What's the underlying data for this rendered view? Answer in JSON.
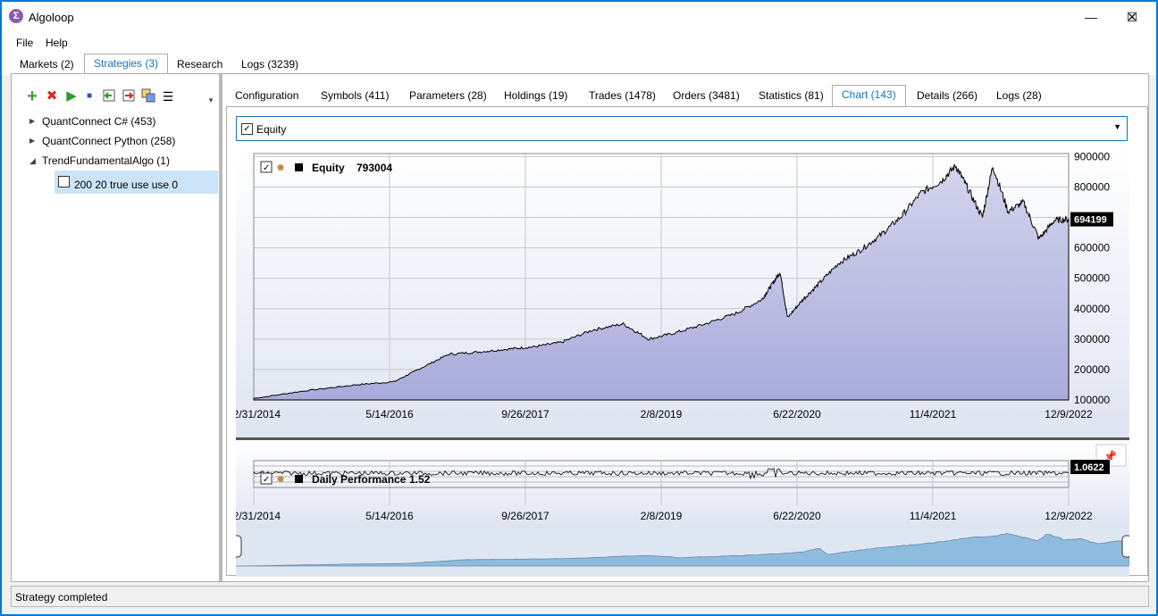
{
  "window": {
    "title": "Algoloop",
    "icon": "sigma-icon"
  },
  "menu": {
    "file": "File",
    "help": "Help"
  },
  "top_tabs": [
    "Markets (2)",
    "Strategies (3)",
    "Research",
    "Logs (3239)"
  ],
  "toolbar_icons": [
    "add-icon",
    "delete-icon",
    "run-icon",
    "stop-icon",
    "import-icon",
    "export-icon",
    "clone-icon",
    "add-list-icon"
  ],
  "tree": {
    "items": [
      "QuantConnect C# (453)",
      "QuantConnect Python (258)",
      "TrendFundamentalAlgo (1)"
    ],
    "leaf": "200 20 true use use 0"
  },
  "sub_tabs": [
    "Configuration",
    "Symbols (411)",
    "Parameters (28)",
    "Holdings (19)",
    "Trades (1478)",
    "Orders (3481)",
    "Statistics (81)",
    "Chart (143)",
    "Details (266)",
    "Logs (28)"
  ],
  "combo": {
    "label": "Equity"
  },
  "colors": {
    "accent": "#1a73b8",
    "equity_fill": "#b6b8e0",
    "navigator": "#8ebcdf"
  },
  "chart_data": [
    {
      "type": "area",
      "legend": "Equity",
      "legend_value": "793004",
      "last_value": "694199",
      "y_ticks": [
        100000,
        200000,
        300000,
        400000,
        500000,
        600000,
        700000,
        800000,
        900000
      ],
      "y_tick_labels": [
        "100000",
        "200000",
        "300000",
        "400000",
        "500000",
        "600000",
        "700000",
        "800000",
        "900000"
      ],
      "ylim": [
        100000,
        910000
      ],
      "x_tick_labels": [
        "12/31/2014",
        "5/14/2016",
        "9/26/2017",
        "2/8/2019",
        "6/22/2020",
        "11/4/2021",
        "12/9/2022"
      ],
      "x": [
        2015.0,
        2015.5,
        2016.0,
        2016.37,
        2016.6,
        2016.9,
        2017.2,
        2017.5,
        2017.74,
        2018.0,
        2018.3,
        2018.6,
        2018.85,
        2019.1,
        2019.4,
        2019.7,
        2019.95,
        2020.05,
        2020.13,
        2020.2,
        2020.35,
        2020.5,
        2020.7,
        2020.9,
        2021.1,
        2021.3,
        2021.5,
        2021.7,
        2021.84,
        2021.95,
        2022.1,
        2022.2,
        2022.35,
        2022.5,
        2022.65,
        2022.8,
        2022.94
      ],
      "values": [
        105000,
        130000,
        150000,
        160000,
        200000,
        250000,
        258000,
        268000,
        275000,
        290000,
        330000,
        350000,
        300000,
        320000,
        350000,
        385000,
        430000,
        480000,
        520000,
        370000,
        430000,
        480000,
        550000,
        590000,
        640000,
        700000,
        780000,
        820000,
        870000,
        800000,
        700000,
        870000,
        720000,
        750000,
        630000,
        690000,
        694000
      ]
    },
    {
      "type": "line",
      "legend": "Daily Performance",
      "legend_value": "1.52",
      "last_value": "1.0622",
      "x_tick_labels": [
        "12/31/2014",
        "5/14/2016",
        "9/26/2017",
        "2/8/2019",
        "6/22/2020",
        "11/4/2021",
        "12/9/2022"
      ]
    }
  ],
  "status": "Strategy completed"
}
